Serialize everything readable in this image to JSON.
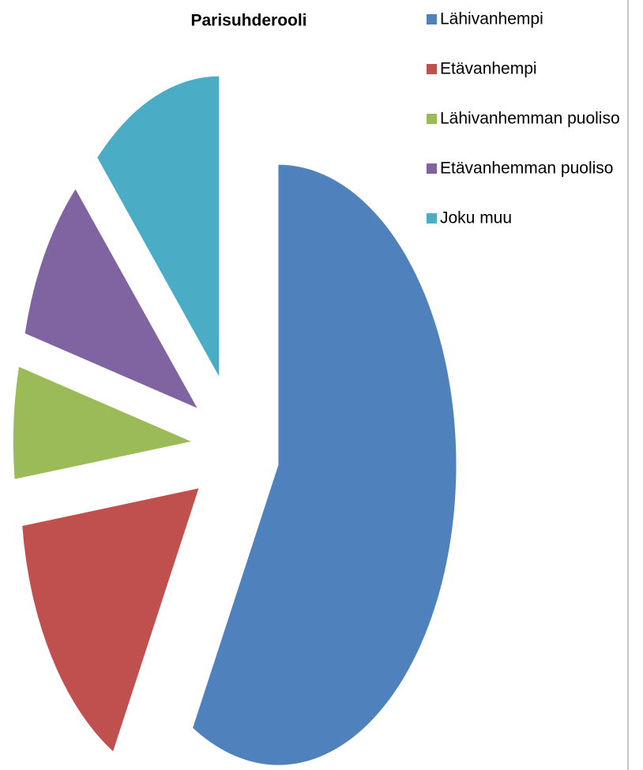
{
  "chart_data": {
    "type": "pie",
    "title": "Parisuhderooli",
    "categories": [
      "Lähivanhempi",
      "Etävanhempi",
      "Lähivanhemman puoliso",
      "Etävanhemman puoliso",
      "Joku muu"
    ],
    "values": [
      58,
      15,
      6,
      9,
      12
    ],
    "colors": [
      "#4f81bd",
      "#c0504d",
      "#9bbb59",
      "#8064a2",
      "#4bacc6"
    ],
    "legend": "right"
  }
}
